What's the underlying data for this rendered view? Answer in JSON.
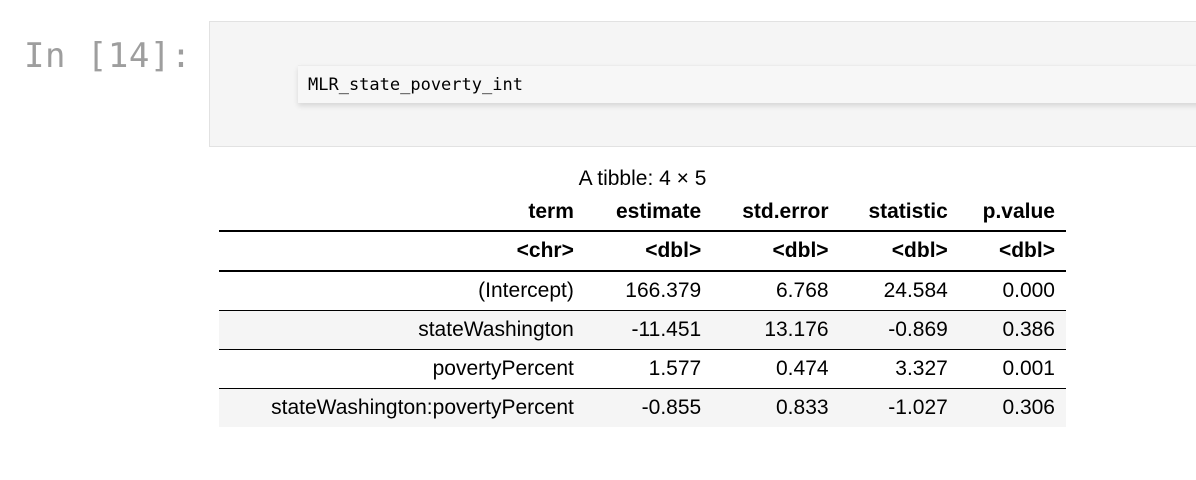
{
  "cell": {
    "prompt": "In [14]:",
    "code": "MLR_state_poverty_int"
  },
  "output": {
    "caption": "A tibble: 4 × 5",
    "columns": [
      "term",
      "estimate",
      "std.error",
      "statistic",
      "p.value"
    ],
    "types": [
      "<chr>",
      "<dbl>",
      "<dbl>",
      "<dbl>",
      "<dbl>"
    ],
    "rows": [
      [
        "(Intercept)",
        "166.379",
        "6.768",
        "24.584",
        "0.000"
      ],
      [
        "stateWashington",
        "-11.451",
        "13.176",
        "-0.869",
        "0.386"
      ],
      [
        "povertyPercent",
        "1.577",
        "0.474",
        "3.327",
        "0.001"
      ],
      [
        "stateWashington:povertyPercent",
        "-0.855",
        "0.833",
        "-1.027",
        "0.306"
      ]
    ]
  }
}
